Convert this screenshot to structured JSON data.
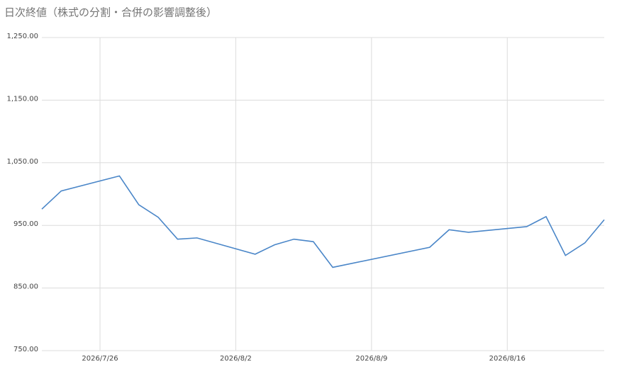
{
  "chart_data": {
    "type": "line",
    "title": "日次終値（株式の分割・合併の影響調整後）",
    "x": [
      "2026-07-23",
      "2026-07-24",
      "2026-07-27",
      "2026-07-28",
      "2026-07-29",
      "2026-07-30",
      "2026-07-31",
      "2026-08-03",
      "2026-08-04",
      "2026-08-05",
      "2026-08-06",
      "2026-08-07",
      "2026-08-12",
      "2026-08-13",
      "2026-08-14",
      "2026-08-17",
      "2026-08-18",
      "2026-08-19",
      "2026-08-20",
      "2026-08-21"
    ],
    "series": [
      {
        "color": "#4a86c8",
        "values": [
          976,
          1005,
          1029,
          983,
          963,
          928,
          930,
          904,
          919,
          928,
          924,
          883,
          915,
          943,
          939,
          948,
          964,
          902,
          922,
          959
        ]
      }
    ],
    "xlim": [
      "2026-07-23",
      "2026-08-21"
    ],
    "xticks": [
      {
        "value": "2026-07-26",
        "label": "2026/7/26"
      },
      {
        "value": "2026-08-02",
        "label": "2026/8/2"
      },
      {
        "value": "2026-08-09",
        "label": "2026/8/9"
      },
      {
        "value": "2026-08-16",
        "label": "2026/8/16"
      }
    ],
    "ylim": [
      750,
      1250
    ],
    "yticks": [
      {
        "value": 750,
        "label": "750.00"
      },
      {
        "value": 850,
        "label": "850.00"
      },
      {
        "value": 950,
        "label": "950.00"
      },
      {
        "value": 1050,
        "label": "1,050.00"
      },
      {
        "value": 1150,
        "label": "1,150.00"
      },
      {
        "value": 1250,
        "label": "1,250.00"
      }
    ],
    "grid": true
  }
}
